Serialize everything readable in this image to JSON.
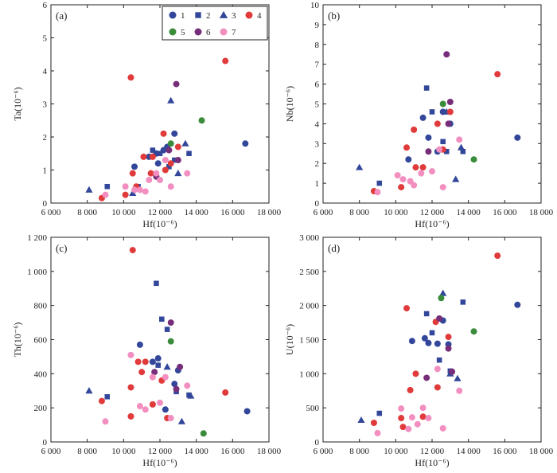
{
  "figure": {
    "legend": [
      {
        "id": "1",
        "label": "1",
        "shape": "circle",
        "color": "#33479a"
      },
      {
        "id": "2",
        "label": "2",
        "shape": "square",
        "color": "#33479a"
      },
      {
        "id": "3",
        "label": "3",
        "shape": "triangle",
        "color": "#33479a"
      },
      {
        "id": "4",
        "label": "4",
        "shape": "circle",
        "color": "#e03a3a"
      },
      {
        "id": "5",
        "label": "5",
        "shape": "circle",
        "color": "#3a8c3a"
      },
      {
        "id": "6",
        "label": "6",
        "shape": "circle",
        "color": "#772e7a"
      },
      {
        "id": "7",
        "label": "7",
        "shape": "circle",
        "color": "#f28fc0"
      }
    ]
  },
  "chart_data": [
    {
      "type": "scatter",
      "panel_label": "(a)",
      "xlabel": "Hf(10⁻⁶)",
      "ylabel": "Ta(10⁻⁶)",
      "xlim": [
        6000,
        18000
      ],
      "ylim": [
        0,
        6
      ],
      "xticks": [
        6000,
        8000,
        10000,
        12000,
        14000,
        16000,
        18000
      ],
      "xtick_labels": [
        "6 000",
        "8 000",
        "10 000",
        "12 000",
        "14 000",
        "16 000",
        "18 000"
      ],
      "yticks": [
        0,
        1,
        2,
        3,
        4,
        5,
        6
      ],
      "ytick_labels": [
        "0",
        "1",
        "2",
        "3",
        "4",
        "5",
        "6"
      ],
      "series": [
        {
          "id": "1",
          "points": [
            [
              10600,
              1.1
            ],
            [
              11400,
              1.4
            ],
            [
              11800,
              1.5
            ],
            [
              11900,
              1.2
            ],
            [
              12200,
              1.6
            ],
            [
              12400,
              1.7
            ],
            [
              12800,
              2.1
            ],
            [
              16700,
              1.8
            ]
          ]
        },
        {
          "id": "2",
          "points": [
            [
              9100,
              0.5
            ],
            [
              10800,
              0.5
            ],
            [
              11600,
              1.6
            ],
            [
              12000,
              1.5
            ],
            [
              12500,
              1.1
            ],
            [
              12800,
              1.3
            ],
            [
              13600,
              1.5
            ]
          ]
        },
        {
          "id": "3",
          "points": [
            [
              8100,
              0.4
            ],
            [
              10500,
              0.3
            ],
            [
              12600,
              3.1
            ],
            [
              13000,
              0.9
            ],
            [
              13400,
              1.8
            ]
          ]
        },
        {
          "id": "4",
          "points": [
            [
              8800,
              0.15
            ],
            [
              10100,
              0.25
            ],
            [
              10400,
              3.8
            ],
            [
              10500,
              0.9
            ],
            [
              10700,
              0.5
            ],
            [
              11100,
              1.4
            ],
            [
              11500,
              0.9
            ],
            [
              11600,
              1.4
            ],
            [
              12200,
              2.1
            ],
            [
              12300,
              1.0
            ],
            [
              12600,
              1.2
            ],
            [
              13000,
              1.7
            ],
            [
              15600,
              4.3
            ]
          ]
        },
        {
          "id": "5",
          "points": [
            [
              12600,
              1.8
            ],
            [
              14300,
              2.5
            ]
          ]
        },
        {
          "id": "6",
          "points": [
            [
              11800,
              0.8
            ],
            [
              12500,
              1.6
            ],
            [
              12900,
              3.6
            ],
            [
              13000,
              1.3
            ]
          ]
        },
        {
          "id": "7",
          "points": [
            [
              9000,
              0.25
            ],
            [
              10100,
              0.5
            ],
            [
              10600,
              0.4
            ],
            [
              10900,
              0.4
            ],
            [
              11200,
              0.35
            ],
            [
              11400,
              0.7
            ],
            [
              11800,
              0.9
            ],
            [
              12000,
              0.7
            ],
            [
              12300,
              1.3
            ],
            [
              12600,
              0.5
            ],
            [
              13500,
              0.9
            ]
          ]
        }
      ]
    },
    {
      "type": "scatter",
      "panel_label": "(b)",
      "xlabel": "Hf(10⁻⁶)",
      "ylabel": "Nb(10⁻⁶)",
      "xlim": [
        6000,
        18000
      ],
      "ylim": [
        0,
        10
      ],
      "xticks": [
        6000,
        8000,
        10000,
        12000,
        14000,
        16000,
        18000
      ],
      "xtick_labels": [
        "6 000",
        "8 000",
        "10 000",
        "12 000",
        "14 000",
        "16 000",
        "18 000"
      ],
      "yticks": [
        0,
        1,
        2,
        3,
        4,
        5,
        6,
        7,
        8,
        9,
        10
      ],
      "ytick_labels": [
        "0",
        "1",
        "2",
        "3",
        "4",
        "5",
        "6",
        "7",
        "8",
        "9",
        "10"
      ],
      "series": [
        {
          "id": "1",
          "points": [
            [
              10700,
              2.2
            ],
            [
              11500,
              4.3
            ],
            [
              11800,
              3.3
            ],
            [
              12300,
              2.6
            ],
            [
              12600,
              4.6
            ],
            [
              13000,
              4.0
            ],
            [
              16700,
              3.3
            ]
          ]
        },
        {
          "id": "2",
          "points": [
            [
              9100,
              1.0
            ],
            [
              11700,
              5.8
            ],
            [
              12000,
              4.6
            ],
            [
              12600,
              3.1
            ],
            [
              12800,
              2.6
            ],
            [
              13700,
              2.6
            ]
          ]
        },
        {
          "id": "3",
          "points": [
            [
              8000,
              1.8
            ],
            [
              12800,
              4.6
            ],
            [
              13300,
              1.2
            ],
            [
              13600,
              2.8
            ]
          ]
        },
        {
          "id": "4",
          "points": [
            [
              8800,
              0.6
            ],
            [
              10300,
              0.8
            ],
            [
              10600,
              2.8
            ],
            [
              11000,
              3.7
            ],
            [
              11100,
              1.8
            ],
            [
              11500,
              1.8
            ],
            [
              12300,
              4.0
            ],
            [
              12600,
              2.7
            ],
            [
              13000,
              4.6
            ],
            [
              15600,
              6.5
            ]
          ]
        },
        {
          "id": "5",
          "points": [
            [
              12600,
              5.0
            ],
            [
              14300,
              2.2
            ]
          ]
        },
        {
          "id": "6",
          "points": [
            [
              12800,
              7.5
            ],
            [
              13000,
              5.1
            ],
            [
              12900,
              4.0
            ],
            [
              11800,
              2.6
            ]
          ]
        },
        {
          "id": "7",
          "points": [
            [
              9000,
              0.55
            ],
            [
              10100,
              1.4
            ],
            [
              10400,
              1.2
            ],
            [
              10800,
              1.1
            ],
            [
              11000,
              0.9
            ],
            [
              11400,
              1.5
            ],
            [
              12000,
              1.6
            ],
            [
              12400,
              2.7
            ],
            [
              12600,
              0.8
            ],
            [
              13500,
              3.2
            ]
          ]
        }
      ]
    },
    {
      "type": "scatter",
      "panel_label": "(c)",
      "xlabel": "Hf(10⁻⁶)",
      "ylabel": "Th(10⁻⁶)",
      "xlim": [
        6000,
        18000
      ],
      "ylim": [
        0,
        1200
      ],
      "xticks": [
        6000,
        8000,
        10000,
        12000,
        14000,
        16000,
        18000
      ],
      "xtick_labels": [
        "6 000",
        "8 000",
        "10 000",
        "12 000",
        "14 000",
        "16 000",
        "18 000"
      ],
      "yticks": [
        0,
        200,
        400,
        600,
        800,
        1000,
        1200
      ],
      "ytick_labels": [
        "0",
        "200",
        "400",
        "600",
        "800",
        "1 000",
        "1 200"
      ],
      "series": [
        {
          "id": "1",
          "points": [
            [
              10900,
              570
            ],
            [
              11600,
              470
            ],
            [
              11900,
              490
            ],
            [
              12300,
              190
            ],
            [
              12800,
              340
            ],
            [
              13000,
              420
            ],
            [
              16800,
              180
            ]
          ]
        },
        {
          "id": "2",
          "points": [
            [
              9100,
              265
            ],
            [
              11800,
              930
            ],
            [
              12100,
              720
            ],
            [
              12400,
              660
            ],
            [
              12900,
              295
            ],
            [
              13600,
              275
            ],
            [
              11900,
              450
            ]
          ]
        },
        {
          "id": "3",
          "points": [
            [
              8100,
              300
            ],
            [
              12400,
              440
            ],
            [
              13200,
              120
            ],
            [
              13700,
              270
            ]
          ]
        },
        {
          "id": "4",
          "points": [
            [
              8800,
              240
            ],
            [
              10400,
              150
            ],
            [
              10400,
              320
            ],
            [
              10500,
              1125
            ],
            [
              10800,
              470
            ],
            [
              11000,
              410
            ],
            [
              11200,
              470
            ],
            [
              11600,
              220
            ],
            [
              12100,
              360
            ],
            [
              12400,
              140
            ],
            [
              15600,
              290
            ]
          ]
        },
        {
          "id": "5",
          "points": [
            [
              12600,
              590
            ],
            [
              14400,
              50
            ]
          ]
        },
        {
          "id": "6",
          "points": [
            [
              11700,
              410
            ],
            [
              12600,
              700
            ],
            [
              12900,
              310
            ],
            [
              13100,
              440
            ]
          ]
        },
        {
          "id": "7",
          "points": [
            [
              9000,
              120
            ],
            [
              10400,
              510
            ],
            [
              10900,
              210
            ],
            [
              11200,
              190
            ],
            [
              11600,
              380
            ],
            [
              12000,
              230
            ],
            [
              12300,
              380
            ],
            [
              12600,
              140
            ],
            [
              13500,
              330
            ]
          ]
        }
      ]
    },
    {
      "type": "scatter",
      "panel_label": "(d)",
      "xlabel": "Hf(10⁻⁶)",
      "ylabel": "U(10⁻⁶)",
      "xlim": [
        6000,
        18000
      ],
      "ylim": [
        0,
        3000
      ],
      "xticks": [
        6000,
        8000,
        10000,
        12000,
        14000,
        16000,
        18000
      ],
      "xtick_labels": [
        "6 000",
        "8 000",
        "10 000",
        "12 000",
        "14 000",
        "16 000",
        "18 000"
      ],
      "yticks": [
        0,
        500,
        1000,
        1500,
        2000,
        2500,
        3000
      ],
      "ytick_labels": [
        "0",
        "500",
        "1 000",
        "1 500",
        "2 000",
        "2 500",
        "3 000"
      ],
      "series": [
        {
          "id": "1",
          "points": [
            [
              10900,
              1480
            ],
            [
              11600,
              1520
            ],
            [
              11800,
              1450
            ],
            [
              12300,
              1440
            ],
            [
              12600,
              1780
            ],
            [
              12900,
              1430
            ],
            [
              16700,
              2010
            ]
          ]
        },
        {
          "id": "2",
          "points": [
            [
              9100,
              420
            ],
            [
              11700,
              1880
            ],
            [
              12000,
              1600
            ],
            [
              12400,
              1200
            ],
            [
              13000,
              1040
            ],
            [
              13700,
              2050
            ]
          ]
        },
        {
          "id": "3",
          "points": [
            [
              8100,
              320
            ],
            [
              12600,
              2180
            ],
            [
              13000,
              1000
            ],
            [
              13400,
              930
            ]
          ]
        },
        {
          "id": "4",
          "points": [
            [
              8800,
              280
            ],
            [
              10300,
              350
            ],
            [
              10400,
              220
            ],
            [
              10600,
              1960
            ],
            [
              10800,
              760
            ],
            [
              11100,
              1000
            ],
            [
              11500,
              370
            ],
            [
              12200,
              1760
            ],
            [
              12300,
              800
            ],
            [
              12900,
              1540
            ],
            [
              15600,
              2730
            ]
          ]
        },
        {
          "id": "5",
          "points": [
            [
              12500,
              2110
            ],
            [
              14300,
              1620
            ]
          ]
        },
        {
          "id": "6",
          "points": [
            [
              11700,
              940
            ],
            [
              12400,
              1810
            ],
            [
              12900,
              1370
            ],
            [
              13100,
              1030
            ]
          ]
        },
        {
          "id": "7",
          "points": [
            [
              9000,
              130
            ],
            [
              10300,
              490
            ],
            [
              10700,
              190
            ],
            [
              10900,
              360
            ],
            [
              11200,
              260
            ],
            [
              11500,
              500
            ],
            [
              11800,
              350
            ],
            [
              12300,
              1070
            ],
            [
              12600,
              200
            ],
            [
              13500,
              750
            ]
          ]
        }
      ]
    }
  ]
}
